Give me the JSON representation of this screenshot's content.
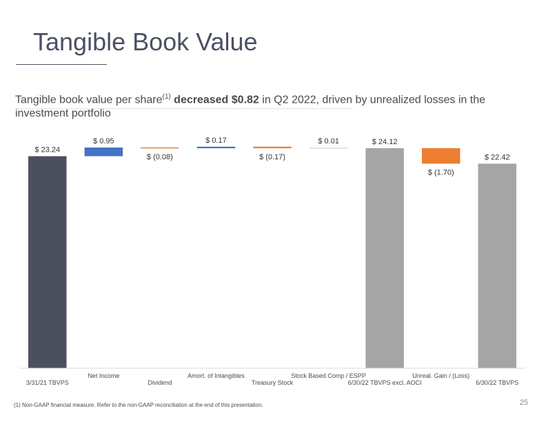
{
  "title": "Tangible Book Value",
  "subtitle": {
    "prefix": "Tangible book value per share",
    "superscript": "(1)",
    "bold": " decreased $0.82",
    "suffix": " in Q2 2022, driven by unrealized losses in the investment portfolio"
  },
  "chart_data": {
    "type": "bar",
    "subtype": "waterfall",
    "categories": [
      "3/31/21 TBVPS",
      "Net Income",
      "Dividend",
      "Amort. of Intangibles",
      "Treasury Stock",
      "Stock Based Comp / ESPP",
      "6/30/22 TBVPS excl. AOCI",
      "Unreal. Gain / (Loss)",
      "6/30/22 TBVPS"
    ],
    "values": [
      23.24,
      0.95,
      -0.08,
      0.17,
      -0.17,
      0.01,
      24.12,
      -1.7,
      22.42
    ],
    "kinds": [
      "total",
      "delta",
      "delta",
      "delta",
      "delta",
      "delta",
      "total",
      "delta",
      "total"
    ],
    "data_labels": [
      "$ 23.24",
      "$ 0.95",
      "$ (0.08)",
      "$ 0.17",
      "$ (0.17)",
      "$ 0.01",
      "$ 24.12",
      "$ (1.70)",
      "$ 22.42"
    ],
    "colors": {
      "start_total": "#4b4f5e",
      "increase": "#4472c4",
      "decrease": "#ed7d31",
      "total": "#a5a5a5",
      "small": "#d9d9d9"
    },
    "ylim": [
      0,
      26
    ],
    "grid": false,
    "legend": "none",
    "xlabel": "",
    "ylabel": ""
  },
  "footnote": "(1)   Non-GAAP financial measure.  Refer to the non-GAAP reconciliation at the end of this presentation.",
  "page_number": "25"
}
